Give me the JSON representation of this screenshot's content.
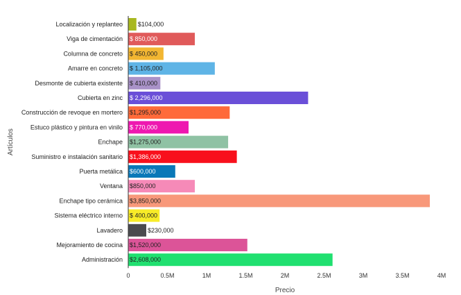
{
  "chart_data": {
    "type": "bar",
    "orientation": "horizontal",
    "xlabel": "Precio",
    "ylabel": "Artículos",
    "xlim": [
      0,
      4000000
    ],
    "x_ticks": [
      {
        "value": 0,
        "label": "0"
      },
      {
        "value": 500000,
        "label": "0.5M"
      },
      {
        "value": 1000000,
        "label": "1M"
      },
      {
        "value": 1500000,
        "label": "1.5M"
      },
      {
        "value": 2000000,
        "label": "2M"
      },
      {
        "value": 2500000,
        "label": "2.5M"
      },
      {
        "value": 3000000,
        "label": "3M"
      },
      {
        "value": 3500000,
        "label": "3.5M"
      },
      {
        "value": 4000000,
        "label": "4M"
      }
    ],
    "grid": false,
    "bars": [
      {
        "category": "Localización y replanteo",
        "value": 104000,
        "label": "$104,000",
        "color": "#a8b820",
        "label_color": "#222222",
        "label_outside": true
      },
      {
        "category": "Viga de cimentación",
        "value": 850000,
        "label": "$ 850,000",
        "color": "#e05a5a",
        "label_color": "#ffffff",
        "label_outside": false
      },
      {
        "category": "Columna de concreto",
        "value": 450000,
        "label": "$ 450,000",
        "color": "#f2b632",
        "label_color": "#222222",
        "label_outside": false
      },
      {
        "category": "Amarre en concreto",
        "value": 1105000,
        "label": "$ 1,105,000",
        "color": "#5fb4e6",
        "label_color": "#222222",
        "label_outside": false
      },
      {
        "category": "Desmonte de cubierta existente",
        "value": 410000,
        "label": "$ 410,000",
        "color": "#a992c8",
        "label_color": "#222222",
        "label_outside": false
      },
      {
        "category": "Cubierta en zinc",
        "value": 2296000,
        "label": "$ 2,296,000",
        "color": "#6a4fd8",
        "label_color": "#ffffff",
        "label_outside": false
      },
      {
        "category": "Construcción de revoque en mortero",
        "value": 1295000,
        "label": "$1,295,000",
        "color": "#ff6a3a",
        "label_color": "#222222",
        "label_outside": false
      },
      {
        "category": "Estuco plástico y pintura en vinilo",
        "value": 770000,
        "label": "$ 770,000",
        "color": "#ee18b0",
        "label_color": "#ffffff",
        "label_outside": false
      },
      {
        "category": "Enchape",
        "value": 1275000,
        "label": "$1,275,000",
        "color": "#8fc2a4",
        "label_color": "#222222",
        "label_outside": false
      },
      {
        "category": "Suministro e instalación sanitario",
        "value": 1386000,
        "label": "$1,386,000",
        "color": "#f8101c",
        "label_color": "#ffffff",
        "label_outside": false
      },
      {
        "category": "Puerta metálica",
        "value": 600000,
        "label": "$600,000",
        "color": "#0a78b8",
        "label_color": "#ffffff",
        "label_outside": false
      },
      {
        "category": "Ventana",
        "value": 850000,
        "label": "$850,000",
        "color": "#f68ab8",
        "label_color": "#222222",
        "label_outside": false
      },
      {
        "category": "Enchape tipo cerámica",
        "value": 3850000,
        "label": "$3,850,000",
        "color": "#f8987a",
        "label_color": "#222222",
        "label_outside": false
      },
      {
        "category": "Sistema eléctrico interno",
        "value": 400000,
        "label": "$ 400,000",
        "color": "#f8ec28",
        "label_color": "#222222",
        "label_outside": false
      },
      {
        "category": "Lavadero",
        "value": 230000,
        "label": "$230,000",
        "color": "#4a4a4e",
        "label_color": "#222222",
        "label_outside": true
      },
      {
        "category": "Mejoramiento de cocina",
        "value": 1520000,
        "label": "$1,520,000",
        "color": "#dc5498",
        "label_color": "#222222",
        "label_outside": false
      },
      {
        "category": "Administración",
        "value": 2608000,
        "label": "$2,608,000",
        "color": "#20e070",
        "label_color": "#222222",
        "label_outside": false
      }
    ]
  }
}
